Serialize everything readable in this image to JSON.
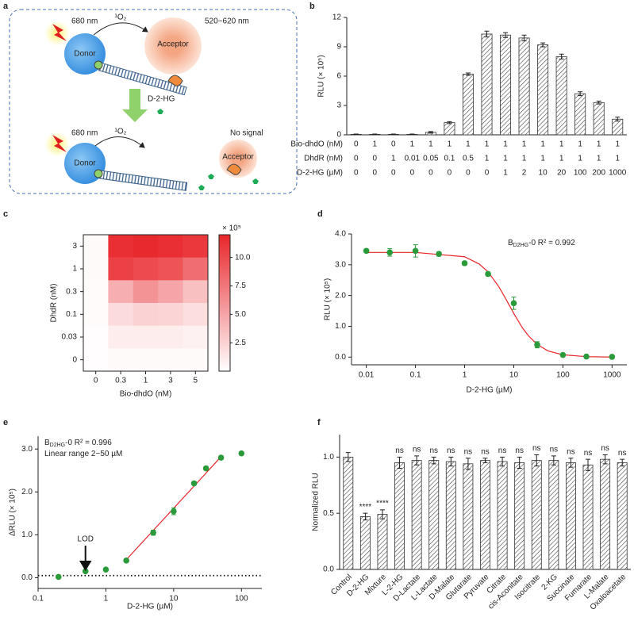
{
  "panel_labels": [
    "a",
    "b",
    "c",
    "d",
    "e",
    "f"
  ],
  "schematic": {
    "top": {
      "wavelength": "680 nm",
      "oxygen": "¹O₂",
      "emission": "520−620 nm",
      "donor": "Donor",
      "acceptor": "Acceptor"
    },
    "analyte": "D-2-HG",
    "bottom": {
      "wavelength": "680 nm",
      "oxygen": "¹O₂",
      "result": "No signal",
      "donor": "Donor",
      "acceptor": "Acceptor"
    }
  },
  "chart_data": [
    {
      "type": "bar",
      "y_label": "RLU (× 10⁵)",
      "color": "#333333",
      "values": [
        0.05,
        0.05,
        0.05,
        0.05,
        0.25,
        1.25,
        6.2,
        10.3,
        10.2,
        9.9,
        9.2,
        8.0,
        4.2,
        3.3,
        1.6
      ],
      "errors": [
        0.03,
        0.03,
        0.03,
        0.03,
        0.08,
        0.1,
        0.12,
        0.3,
        0.25,
        0.3,
        0.2,
        0.25,
        0.2,
        0.15,
        0.2
      ],
      "ylim": [
        0,
        12
      ],
      "yticks": [
        0,
        3,
        6,
        9,
        12
      ],
      "table": [
        {
          "label": "Bio-dhdO (nM)",
          "cells": [
            "0",
            "1",
            "0",
            "1",
            "1",
            "1",
            "1",
            "1",
            "1",
            "1",
            "1",
            "1",
            "1",
            "1",
            "1"
          ]
        },
        {
          "label": "DhdR (nM)",
          "cells": [
            "0",
            "0",
            "1",
            "0.01",
            "0.05",
            "0.1",
            "0.5",
            "1",
            "1",
            "1",
            "1",
            "1",
            "1",
            "1",
            "1"
          ]
        },
        {
          "label": "D-2-HG (µM)",
          "cells": [
            "0",
            "0",
            "0",
            "0",
            "0",
            "0",
            "0",
            "0",
            "1",
            "2",
            "10",
            "20",
            "100",
            "200",
            "1000"
          ]
        }
      ]
    },
    {
      "type": "heatmap",
      "x_label": "Bio-dhdO (nM)",
      "y_label": "DhdR (nM)",
      "x_categories": [
        "0",
        "0.3",
        "1",
        "3",
        "5"
      ],
      "y_categories": [
        "3",
        "1",
        "0.3",
        "0.1",
        "0.03",
        "0"
      ],
      "values": [
        [
          0.3,
          11.5,
          11.8,
          11.5,
          11.0
        ],
        [
          0.3,
          10.5,
          10.0,
          9.5,
          8.0
        ],
        [
          0.2,
          4.5,
          6.0,
          5.0,
          3.5
        ],
        [
          0.2,
          2.0,
          2.5,
          2.3,
          1.8
        ],
        [
          0.1,
          1.0,
          1.0,
          1.0,
          0.8
        ],
        [
          0.1,
          0.3,
          0.3,
          0.3,
          0.3
        ]
      ],
      "color": "#e8262b",
      "colorbar_label": "× 10⁵",
      "clim": [
        0,
        12
      ],
      "cticks": [
        2.5,
        {
          "value": 5,
          "label": "5.0"
        },
        7.5,
        {
          "value": 10,
          "label": "10.0"
        }
      ]
    },
    {
      "type": "scatter",
      "log_x": true,
      "x_label": "D-2-HG (µM)",
      "y_label": "RLU (× 10⁵)",
      "color": "#2a9a3a",
      "annotations": [
        {
          "main": "B",
          "sub": "D2HG",
          "rest": "-0 R² = 0.992"
        }
      ],
      "x": [
        0.01,
        0.03,
        0.1,
        0.3,
        1,
        3,
        10,
        30,
        100,
        300,
        1000
      ],
      "values": [
        3.45,
        3.4,
        3.45,
        3.35,
        3.05,
        2.7,
        1.75,
        0.4,
        0.07,
        0.02,
        0.01
      ],
      "errors": [
        0.05,
        0.12,
        0.2,
        0.07,
        0.06,
        0.06,
        0.2,
        0.1,
        0.02,
        0.01,
        0.01
      ],
      "fit": {
        "color": "#e8262b",
        "x": [
          0.01,
          0.1,
          1,
          2,
          3,
          5,
          7,
          10,
          15,
          20,
          30,
          50,
          100,
          300,
          1000
        ],
        "values": [
          3.4,
          3.4,
          3.26,
          3.02,
          2.77,
          2.28,
          1.87,
          1.42,
          0.95,
          0.69,
          0.41,
          0.2,
          0.075,
          0.015,
          0.0
        ]
      },
      "xlim": [
        0.005,
        2000
      ],
      "xticks": [
        0.01,
        0.1,
        1,
        10,
        100,
        1000
      ],
      "ylim": [
        -0.25,
        4
      ],
      "yticks": [
        {
          "value": 0,
          "label": "0.0"
        },
        {
          "value": 1,
          "label": "1.0"
        },
        {
          "value": 2,
          "label": "2.0"
        },
        {
          "value": 3,
          "label": "3.0"
        },
        {
          "value": 4,
          "label": "4.0"
        }
      ]
    },
    {
      "type": "scatter",
      "log_x": true,
      "x_label": "D-2-HG (µM)",
      "y_label": "ΔRLU (× 10⁵)",
      "color": "#2a9a3a",
      "annotations": [
        {
          "main": "B",
          "sub": "D2HG",
          "rest": "-0 R² = 0.996"
        },
        {
          "main": "Linear range 2−50 µM"
        }
      ],
      "x": [
        0.2,
        0.5,
        1,
        2,
        5,
        10,
        20,
        30,
        50,
        100
      ],
      "values": [
        0.02,
        0.15,
        0.19,
        0.4,
        1.05,
        1.55,
        2.2,
        2.55,
        2.8,
        2.9
      ],
      "errors": [
        0.01,
        0.01,
        0.01,
        0.02,
        0.06,
        0.08,
        0.04,
        0.04,
        0.04,
        0.03
      ],
      "fit": {
        "color": "#e8262b",
        "x": [
          2,
          50
        ],
        "values": [
          0.42,
          2.82
        ]
      },
      "threshold": 0.05,
      "lod_label": "LOD",
      "lod_x": 0.5,
      "xlim": [
        0.1,
        200
      ],
      "xticks": [
        0.1,
        1,
        10,
        100
      ],
      "ylim": [
        -0.25,
        3.3
      ],
      "yticks": [
        {
          "value": 0,
          "label": "0.0"
        },
        {
          "value": 1,
          "label": "1.0"
        },
        {
          "value": 2,
          "label": "2.0"
        },
        {
          "value": 3,
          "label": "3.0"
        }
      ]
    },
    {
      "type": "bar",
      "y_label": "Normalized RLU",
      "color": "#333333",
      "categories": [
        "Control",
        "D-2-HG",
        "Mixture",
        "L-2-HG",
        "D-Lactate",
        "L-Lactate",
        "D-Malate",
        "Glutarate",
        "Pyruvate",
        "Citrate",
        "cis-Aconitate",
        "Isocitrate",
        "2-KG",
        "Succinate",
        "Fumarate",
        "L-Malate",
        "Oxaloacetate"
      ],
      "values": [
        1.0,
        0.47,
        0.49,
        0.95,
        0.97,
        0.97,
        0.96,
        0.94,
        0.97,
        0.96,
        0.95,
        0.97,
        0.97,
        0.95,
        0.93,
        0.98,
        0.95
      ],
      "errors": [
        0.04,
        0.03,
        0.04,
        0.05,
        0.04,
        0.03,
        0.04,
        0.05,
        0.02,
        0.04,
        0.05,
        0.05,
        0.04,
        0.04,
        0.05,
        0.04,
        0.03
      ],
      "significance": [
        null,
        "****",
        "****",
        "ns",
        "ns",
        "ns",
        "ns",
        "ns",
        "ns",
        "ns",
        "ns",
        "ns",
        "ns",
        "ns",
        "ns",
        "ns",
        "ns"
      ],
      "ylim": [
        0,
        1.2
      ],
      "yticks": [
        {
          "value": 0,
          "label": "0.0"
        },
        {
          "value": 0.5,
          "label": "0.5"
        },
        {
          "value": 1,
          "label": "1.0"
        }
      ]
    }
  ]
}
